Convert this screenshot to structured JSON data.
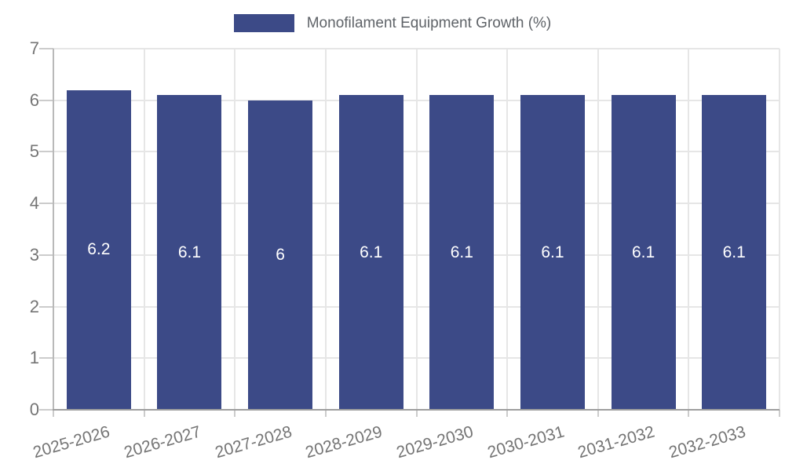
{
  "chart_data": {
    "type": "bar",
    "title": "",
    "legend": {
      "position": "top",
      "label": "Monofilament Equipment Growth (%)"
    },
    "categories": [
      "2025-2026",
      "2026-2027",
      "2027-2028",
      "2028-2029",
      "2029-2030",
      "2030-2031",
      "2031-2032",
      "2032-2033"
    ],
    "series": [
      {
        "name": "Monofilament Equipment Growth (%)",
        "values": [
          6.2,
          6.1,
          6,
          6.1,
          6.1,
          6.1,
          6.1,
          6.1
        ]
      }
    ],
    "bar_labels": [
      "6.2",
      "6.1",
      "6",
      "6.1",
      "6.1",
      "6.1",
      "6.1",
      "6.1"
    ],
    "xlabel": "",
    "ylabel": "",
    "ylim": [
      0,
      7
    ],
    "yticks": [
      0,
      1,
      2,
      3,
      4,
      5,
      6,
      7
    ],
    "grid": true,
    "colors": {
      "bar": "#3c4a87",
      "grid": "#e6e6e6",
      "tick": "#cccccc",
      "x_axis_line": "#9e9e9e",
      "y_axis_line": "#b9b9b9",
      "axis_text": "#757575",
      "legend_text": "#5f6368",
      "bar_label": "#ffffff",
      "background": "#ffffff"
    }
  }
}
